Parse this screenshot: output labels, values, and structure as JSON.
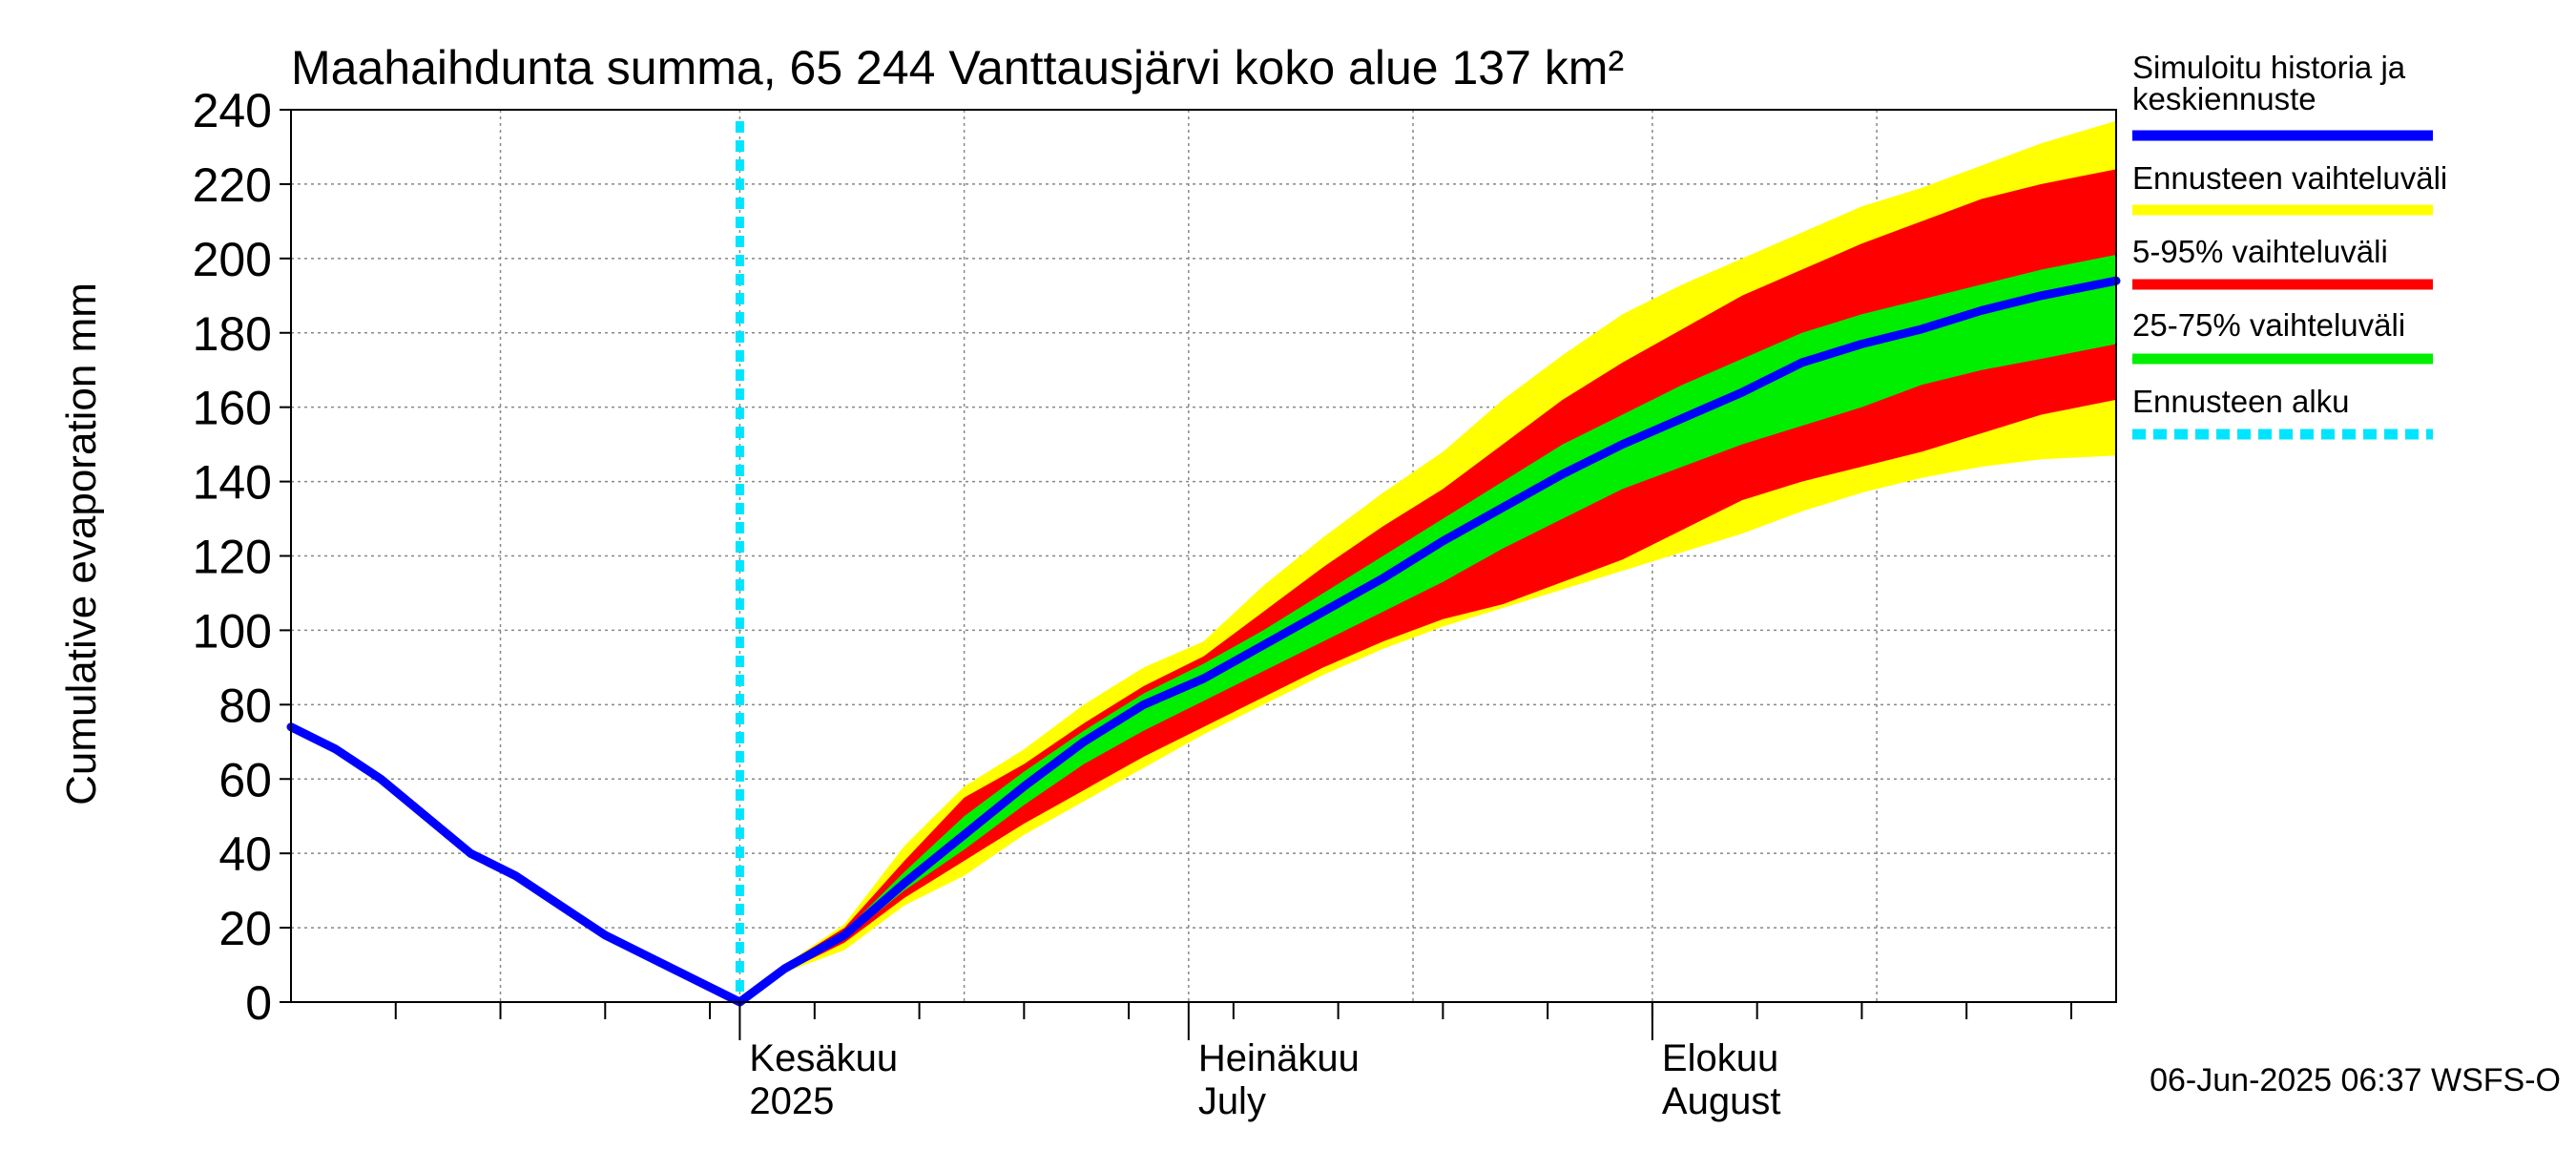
{
  "chart_data": {
    "type": "area",
    "title": "Maahaihdunta summa, 65 244 Vanttausjärvi koko alue 137 km²",
    "ylabel": "Cumulative evaporation   mm",
    "xlabel": "",
    "ylim": [
      0,
      240
    ],
    "y_ticks": [
      0,
      20,
      40,
      60,
      80,
      100,
      120,
      140,
      160,
      180,
      200,
      220,
      240
    ],
    "x_range": [
      "2025-05-02",
      "2025-09-01"
    ],
    "grid": true,
    "legend_position": "right",
    "month_labels": [
      {
        "date": "2025-06-01",
        "line1": "Kesäkuu",
        "line2": "2025"
      },
      {
        "date": "2025-07-01",
        "line1": "Heinäkuu",
        "line2": "July"
      },
      {
        "date": "2025-08-01",
        "line1": "Elokuu",
        "line2": "August"
      }
    ],
    "forecast_start": "2025-06-01",
    "footer": "06-Jun-2025 06:37 WSFS-O",
    "colors": {
      "history": "#0000ff",
      "range_full": "#ffff00",
      "range_5_95": "#ff0000",
      "range_25_75": "#00ee00",
      "forecast_start": "#00e5ff"
    },
    "legend": [
      {
        "label_line1": "Simuloitu historia ja",
        "label_line2": "keskiennuste",
        "color": "#0000ff",
        "style": "solid"
      },
      {
        "label_line1": "Ennusteen vaihteluväli",
        "label_line2": "",
        "color": "#ffff00",
        "style": "solid"
      },
      {
        "label_line1": "5-95% vaihteluväli",
        "label_line2": "",
        "color": "#ff0000",
        "style": "solid"
      },
      {
        "label_line1": "25-75% vaihteluväli",
        "label_line2": "",
        "color": "#00ee00",
        "style": "solid"
      },
      {
        "label_line1": "Ennusteen alku",
        "label_line2": "",
        "color": "#00e5ff",
        "style": "dashed"
      }
    ],
    "series": [
      {
        "name": "Simuloitu historia ja keskiennuste",
        "x": [
          "2025-05-02",
          "2025-05-05",
          "2025-05-08",
          "2025-05-11",
          "2025-05-14",
          "2025-05-17",
          "2025-05-20",
          "2025-05-23",
          "2025-05-26",
          "2025-05-29",
          "2025-06-01",
          "2025-06-04",
          "2025-06-08",
          "2025-06-12",
          "2025-06-16",
          "2025-06-20",
          "2025-06-24",
          "2025-06-28",
          "2025-07-02",
          "2025-07-06",
          "2025-07-10",
          "2025-07-14",
          "2025-07-18",
          "2025-07-22",
          "2025-07-26",
          "2025-07-30",
          "2025-08-03",
          "2025-08-07",
          "2025-08-11",
          "2025-08-15",
          "2025-08-19",
          "2025-08-23",
          "2025-08-27",
          "2025-09-01"
        ],
        "values": [
          74,
          68,
          60,
          50,
          40,
          34,
          26,
          18,
          12,
          6,
          0,
          9,
          18,
          32,
          45,
          58,
          70,
          80,
          87,
          96,
          105,
          114,
          124,
          133,
          142,
          150,
          157,
          164,
          172,
          177,
          181,
          186,
          190,
          194
        ]
      },
      {
        "name": "Ennusteen vaihteluväli",
        "x": [
          "2025-06-01",
          "2025-06-04",
          "2025-06-08",
          "2025-06-12",
          "2025-06-16",
          "2025-06-20",
          "2025-06-24",
          "2025-06-28",
          "2025-07-02",
          "2025-07-06",
          "2025-07-10",
          "2025-07-14",
          "2025-07-18",
          "2025-07-22",
          "2025-07-26",
          "2025-07-30",
          "2025-08-03",
          "2025-08-07",
          "2025-08-11",
          "2025-08-15",
          "2025-08-19",
          "2025-08-23",
          "2025-08-27",
          "2025-09-01"
        ],
        "upper": [
          0,
          10,
          21,
          42,
          58,
          68,
          80,
          90,
          97,
          112,
          125,
          137,
          148,
          162,
          174,
          185,
          193,
          200,
          207,
          214,
          219,
          225,
          231,
          237
        ],
        "lower": [
          0,
          8,
          14,
          26,
          34,
          45,
          54,
          63,
          72,
          80,
          88,
          95,
          101,
          106,
          111,
          116,
          121,
          126,
          132,
          137,
          141,
          144,
          146,
          147
        ]
      },
      {
        "name": "5-95% vaihteluväli",
        "x": [
          "2025-06-01",
          "2025-06-04",
          "2025-06-08",
          "2025-06-12",
          "2025-06-16",
          "2025-06-20",
          "2025-06-24",
          "2025-06-28",
          "2025-07-02",
          "2025-07-06",
          "2025-07-10",
          "2025-07-14",
          "2025-07-18",
          "2025-07-22",
          "2025-07-26",
          "2025-07-30",
          "2025-08-03",
          "2025-08-07",
          "2025-08-11",
          "2025-08-15",
          "2025-08-19",
          "2025-08-23",
          "2025-08-27",
          "2025-09-01"
        ],
        "upper": [
          0,
          10,
          20,
          38,
          55,
          64,
          75,
          85,
          93,
          105,
          117,
          128,
          138,
          150,
          162,
          172,
          181,
          190,
          197,
          204,
          210,
          216,
          220,
          224
        ],
        "lower": [
          0,
          8,
          16,
          28,
          38,
          48,
          57,
          66,
          74,
          82,
          90,
          97,
          103,
          107,
          113,
          119,
          127,
          135,
          140,
          144,
          148,
          153,
          158,
          162
        ]
      },
      {
        "name": "25-75% vaihteluväli",
        "x": [
          "2025-06-01",
          "2025-06-04",
          "2025-06-08",
          "2025-06-12",
          "2025-06-16",
          "2025-06-20",
          "2025-06-24",
          "2025-06-28",
          "2025-07-02",
          "2025-07-06",
          "2025-07-10",
          "2025-07-14",
          "2025-07-18",
          "2025-07-22",
          "2025-07-26",
          "2025-07-30",
          "2025-08-03",
          "2025-08-07",
          "2025-08-11",
          "2025-08-15",
          "2025-08-19",
          "2025-08-23",
          "2025-08-27",
          "2025-09-01"
        ],
        "upper": [
          0,
          9,
          19,
          35,
          50,
          62,
          73,
          83,
          91,
          100,
          110,
          120,
          130,
          140,
          150,
          158,
          166,
          173,
          180,
          185,
          189,
          193,
          197,
          201
        ],
        "lower": [
          0,
          9,
          17,
          30,
          41,
          53,
          64,
          73,
          81,
          89,
          97,
          105,
          113,
          122,
          130,
          138,
          144,
          150,
          155,
          160,
          166,
          170,
          173,
          177
        ]
      }
    ]
  }
}
